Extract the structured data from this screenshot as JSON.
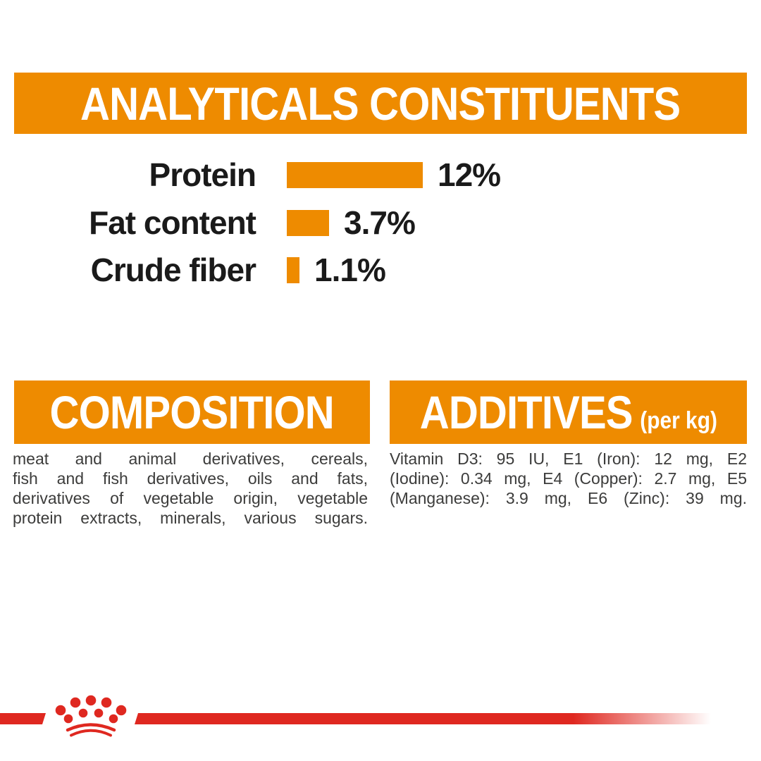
{
  "brand_colors": {
    "orange": "#EE8B00",
    "red": "#DF2820",
    "label_text": "#1A1A1A",
    "body_text": "#3C3C3B",
    "banner_text": "#FFFFFF"
  },
  "analyticals": {
    "title": "ANALYTICALS CONSTITUENTS"
  },
  "chart_data": {
    "type": "bar",
    "orientation": "horizontal",
    "title": "ANALYTICALS CONSTITUENTS",
    "categories": [
      "Protein",
      "Fat content",
      "Crude fiber"
    ],
    "values": [
      12,
      3.7,
      1.1
    ],
    "value_labels": [
      "12%",
      "3.7%",
      "1.1%"
    ],
    "unit": "%",
    "xlabel": "",
    "ylabel": "",
    "xlim": [
      0,
      12.5
    ],
    "grid": false,
    "legend": false,
    "bar_color": "#EE8B00"
  },
  "composition": {
    "title": "COMPOSITION",
    "lines": [
      "meat and animal derivatives, cereals,",
      "fish and fish derivatives, oils and fats,",
      "derivatives of vegetable origin, vegetable",
      "protein extracts, minerals, various sugars."
    ]
  },
  "additives": {
    "title": "ADDITIVES",
    "subtitle": "(per kg)",
    "lines": [
      "Vitamin D3: 95 IU, E1 (Iron): 12 mg, E2",
      "(Iodine): 0.34 mg, E4 (Copper): 2.7 mg, E5",
      "(Manganese): 3.9 mg, E6 (Zinc): 39 mg."
    ]
  },
  "footer": {
    "logo": "royal-canin-crown-logo"
  }
}
